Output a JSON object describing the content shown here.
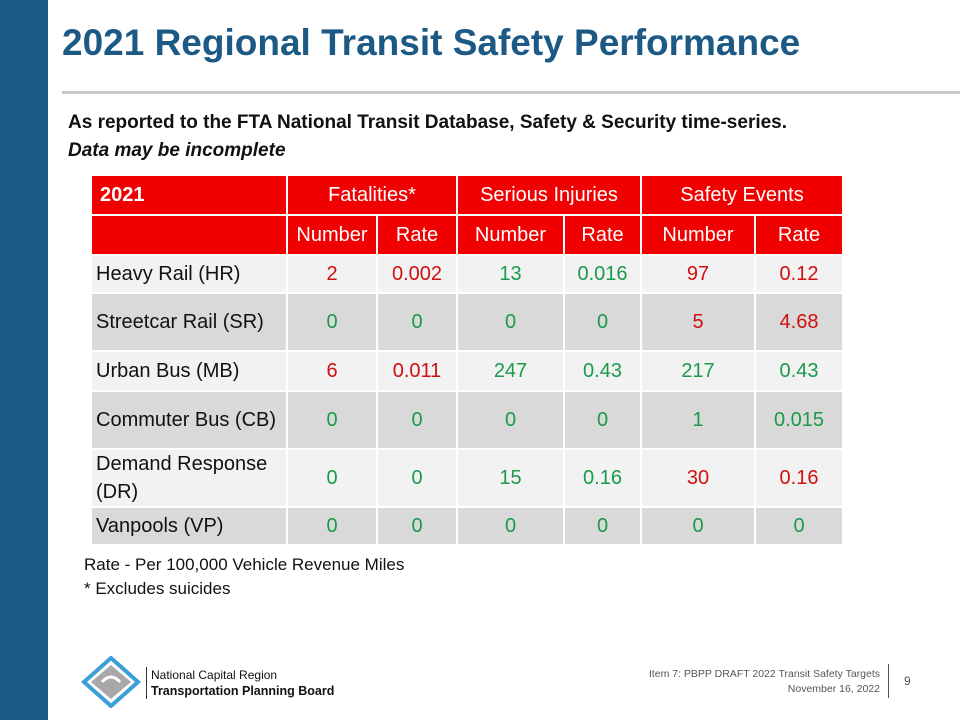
{
  "title": "2021 Regional Transit Safety Performance",
  "subtitle": "As reported to the FTA National Transit Database, Safety & Security time-series.",
  "subtitle_note": "Data may be incomplete",
  "table": {
    "year": "2021",
    "groups": [
      "Fatalities*",
      "Serious Injuries",
      "Safety Events"
    ],
    "subheaders": [
      "Number",
      "Rate",
      "Number",
      "Rate",
      "Number",
      "Rate"
    ],
    "rows": [
      {
        "label": "Heavy Rail (HR)",
        "values": [
          "2",
          "0.002",
          "13",
          "0.016",
          "97",
          "0.12"
        ],
        "colors": [
          "red",
          "red",
          "green",
          "green",
          "red",
          "red"
        ]
      },
      {
        "label": "Streetcar Rail (SR)",
        "values": [
          "0",
          "0",
          "0",
          "0",
          "5",
          "4.68"
        ],
        "colors": [
          "green",
          "green",
          "green",
          "green",
          "red",
          "red"
        ]
      },
      {
        "label": "Urban Bus (MB)",
        "values": [
          "6",
          "0.011",
          "247",
          "0.43",
          "217",
          "0.43"
        ],
        "colors": [
          "red",
          "red",
          "green",
          "green",
          "green",
          "green"
        ]
      },
      {
        "label": "Commuter Bus (CB)",
        "values": [
          "0",
          "0",
          "0",
          "0",
          "1",
          "0.015"
        ],
        "colors": [
          "green",
          "green",
          "green",
          "green",
          "green",
          "green"
        ]
      },
      {
        "label": "Demand Response (DR)",
        "values": [
          "0",
          "0",
          "15",
          "0.16",
          "30",
          "0.16"
        ],
        "colors": [
          "green",
          "green",
          "green",
          "green",
          "red",
          "red"
        ]
      },
      {
        "label": "Vanpools (VP)",
        "values": [
          "0",
          "0",
          "0",
          "0",
          "0",
          "0"
        ],
        "colors": [
          "green",
          "green",
          "green",
          "green",
          "green",
          "green"
        ]
      }
    ]
  },
  "notes": [
    "Rate - Per 100,000 Vehicle Revenue Miles",
    "* Excludes suicides"
  ],
  "footer": {
    "org_line1": "National Capital Region",
    "org_line2": "Transportation Planning Board",
    "item": "Item 7: PBPP DRAFT 2022 Transit Safety Targets",
    "date": "November 16, 2022",
    "page": "9"
  },
  "colors": {
    "brand": "#1c5a85",
    "header": "#f00000",
    "red": "#d01010",
    "green": "#1a9a4a"
  }
}
